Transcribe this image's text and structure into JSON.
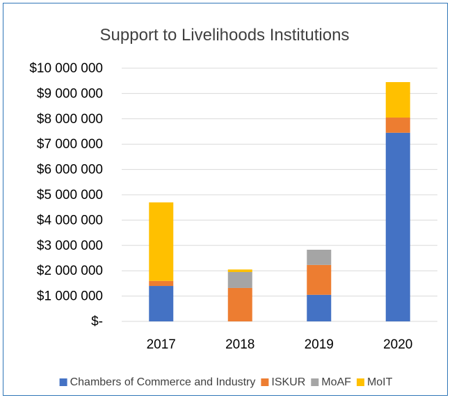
{
  "chart_data": {
    "type": "bar",
    "stacked": true,
    "title": "Support to Livelihoods Institutions",
    "categories": [
      "2017",
      "2018",
      "2019",
      "2020"
    ],
    "series": [
      {
        "name": "Chambers of Commerce and Industry",
        "color": "#4472C4",
        "values": [
          1400000,
          0,
          1050000,
          7450000
        ]
      },
      {
        "name": "ISKUR",
        "color": "#ED7D31",
        "values": [
          200000,
          1320000,
          1180000,
          600000
        ]
      },
      {
        "name": "MoAF",
        "color": "#A5A5A5",
        "values": [
          0,
          630000,
          600000,
          0
        ]
      },
      {
        "name": "MoIT",
        "color": "#FFC000",
        "values": [
          3100000,
          100000,
          0,
          1400000
        ]
      }
    ],
    "ylim": [
      0,
      10000000
    ],
    "y_ticks": [
      {
        "value": 0,
        "label": "$-"
      },
      {
        "value": 1000000,
        "label": "$1 000 000"
      },
      {
        "value": 2000000,
        "label": "$2 000 000"
      },
      {
        "value": 3000000,
        "label": "$3 000 000"
      },
      {
        "value": 4000000,
        "label": "$4 000 000"
      },
      {
        "value": 5000000,
        "label": "$5 000 000"
      },
      {
        "value": 6000000,
        "label": "$6 000 000"
      },
      {
        "value": 7000000,
        "label": "$7 000 000"
      },
      {
        "value": 8000000,
        "label": "$8 000 000"
      },
      {
        "value": 9000000,
        "label": "$9 000 000"
      },
      {
        "value": 10000000,
        "label": "$10 000 000"
      }
    ],
    "grid": true,
    "legend_position": "bottom"
  }
}
